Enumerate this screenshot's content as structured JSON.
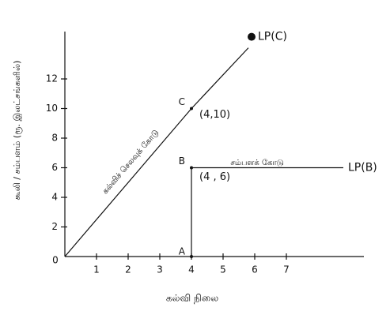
{
  "chart_data": {
    "type": "line",
    "xlabel": "கல்வி நிலை",
    "ylabel": "கூலி / சம்பளம் (ரூ. இலட்சங்களில்)",
    "origin_label": "0",
    "xlim": [
      0,
      9.45
    ],
    "ylim": [
      0,
      15.2
    ],
    "xticks": [
      1,
      2,
      3,
      4,
      5,
      6,
      7
    ],
    "yticks": [
      2,
      4,
      6,
      8,
      10,
      12
    ],
    "series": [
      {
        "name": "LP(C)",
        "x": [
          0,
          4,
          5.8
        ],
        "values": [
          0,
          10,
          14.1
        ]
      },
      {
        "name": "LP(B)",
        "x": [
          4,
          8.8
        ],
        "values": [
          6,
          6
        ]
      },
      {
        "x": [
          4,
          4
        ],
        "values": [
          0,
          6
        ]
      }
    ],
    "points": [
      {
        "label": "C",
        "coord": "(4,10)",
        "x": 4,
        "y": 10
      },
      {
        "label": "B",
        "coord": "(4 , 6)",
        "x": 4,
        "y": 6
      },
      {
        "label": "A",
        "x": 4,
        "y": 0
      }
    ],
    "line_labels": [
      "கல்விச் செலவுக் கோடு",
      "சம்பளக் கோடு"
    ]
  }
}
